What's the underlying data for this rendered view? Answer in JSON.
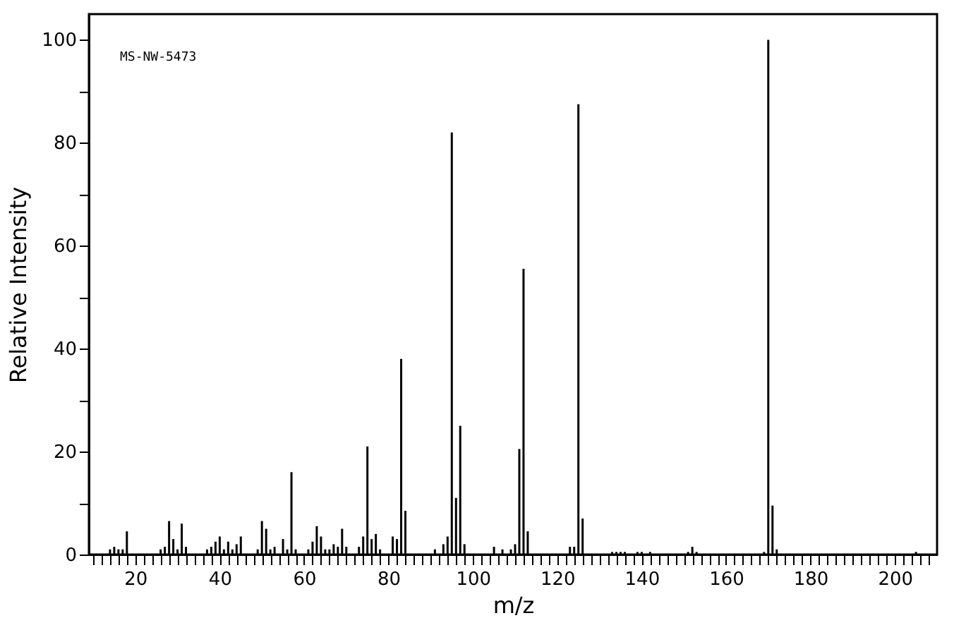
{
  "chart_data": {
    "type": "bar",
    "xlabel": "m/z",
    "ylabel": "Relative Intensity",
    "color": "#000000",
    "grid": false,
    "annotations": [
      "MS-NW-5473"
    ],
    "x": [
      14,
      15,
      16,
      17,
      18,
      26,
      27,
      28,
      29,
      30,
      31,
      32,
      37,
      38,
      39,
      40,
      41,
      42,
      43,
      44,
      45,
      49,
      50,
      51,
      52,
      53,
      55,
      56,
      57,
      58,
      61,
      62,
      63,
      64,
      65,
      66,
      67,
      68,
      69,
      70,
      73,
      74,
      75,
      76,
      77,
      78,
      81,
      82,
      83,
      84,
      91,
      93,
      94,
      95,
      96,
      97,
      98,
      105,
      107,
      109,
      110,
      111,
      112,
      113,
      123,
      124,
      125,
      126,
      133,
      134,
      135,
      136,
      139,
      140,
      142,
      151,
      152,
      153,
      169,
      170,
      171,
      172,
      205
    ],
    "values": [
      1,
      1.5,
      1,
      1,
      4.5,
      1,
      1.5,
      6.5,
      3,
      1,
      6,
      1.5,
      1,
      1.5,
      2.5,
      3.5,
      1,
      2.5,
      1,
      2,
      3.5,
      1,
      6.5,
      5,
      1,
      1.5,
      3,
      1,
      16,
      1,
      1,
      2.5,
      5.5,
      3.5,
      1,
      1,
      2,
      1.5,
      5,
      1.5,
      1.5,
      3.5,
      21,
      3,
      4,
      1,
      3.5,
      3,
      38,
      8.5,
      1,
      2,
      3.5,
      82,
      11,
      25,
      2,
      1.5,
      1,
      1,
      2,
      20.5,
      55.5,
      4.5,
      1.5,
      1.5,
      87.5,
      7,
      0.5,
      0.5,
      0.5,
      0.5,
      0.5,
      0.5,
      0.5,
      0.5,
      1.5,
      0.5,
      0.5,
      100,
      9.5,
      1,
      0.5
    ],
    "xlim": [
      9,
      210
    ],
    "ylim": [
      0,
      105
    ],
    "xticks": [
      {
        "value": 10,
        "label": null
      },
      {
        "value": 12,
        "label": null
      },
      {
        "value": 14,
        "label": null
      },
      {
        "value": 16,
        "label": null
      },
      {
        "value": 18,
        "label": null
      },
      20,
      {
        "value": 22,
        "label": null
      },
      {
        "value": 24,
        "label": null
      },
      {
        "value": 26,
        "label": null
      },
      {
        "value": 28,
        "label": null
      },
      {
        "value": 30,
        "label": null
      },
      {
        "value": 32,
        "label": null
      },
      {
        "value": 34,
        "label": null
      },
      {
        "value": 36,
        "label": null
      },
      {
        "value": 38,
        "label": null
      },
      40,
      {
        "value": 42,
        "label": null
      },
      {
        "value": 44,
        "label": null
      },
      {
        "value": 46,
        "label": null
      },
      {
        "value": 48,
        "label": null
      },
      {
        "value": 50,
        "label": null
      },
      {
        "value": 52,
        "label": null
      },
      {
        "value": 54,
        "label": null
      },
      {
        "value": 56,
        "label": null
      },
      {
        "value": 58,
        "label": null
      },
      60,
      {
        "value": 62,
        "label": null
      },
      {
        "value": 64,
        "label": null
      },
      {
        "value": 66,
        "label": null
      },
      {
        "value": 68,
        "label": null
      },
      {
        "value": 70,
        "label": null
      },
      {
        "value": 72,
        "label": null
      },
      {
        "value": 74,
        "label": null
      },
      {
        "value": 76,
        "label": null
      },
      {
        "value": 78,
        "label": null
      },
      80,
      {
        "value": 82,
        "label": null
      },
      {
        "value": 84,
        "label": null
      },
      {
        "value": 86,
        "label": null
      },
      {
        "value": 88,
        "label": null
      },
      {
        "value": 90,
        "label": null
      },
      {
        "value": 92,
        "label": null
      },
      {
        "value": 94,
        "label": null
      },
      {
        "value": 96,
        "label": null
      },
      {
        "value": 98,
        "label": null
      },
      100,
      {
        "value": 102,
        "label": null
      },
      {
        "value": 104,
        "label": null
      },
      {
        "value": 106,
        "label": null
      },
      {
        "value": 108,
        "label": null
      },
      {
        "value": 110,
        "label": null
      },
      {
        "value": 112,
        "label": null
      },
      {
        "value": 114,
        "label": null
      },
      {
        "value": 116,
        "label": null
      },
      {
        "value": 118,
        "label": null
      },
      120,
      {
        "value": 122,
        "label": null
      },
      {
        "value": 124,
        "label": null
      },
      {
        "value": 126,
        "label": null
      },
      {
        "value": 128,
        "label": null
      },
      {
        "value": 130,
        "label": null
      },
      {
        "value": 132,
        "label": null
      },
      {
        "value": 134,
        "label": null
      },
      {
        "value": 136,
        "label": null
      },
      {
        "value": 138,
        "label": null
      },
      140,
      {
        "value": 142,
        "label": null
      },
      {
        "value": 144,
        "label": null
      },
      {
        "value": 146,
        "label": null
      },
      {
        "value": 148,
        "label": null
      },
      {
        "value": 150,
        "label": null
      },
      {
        "value": 152,
        "label": null
      },
      {
        "value": 154,
        "label": null
      },
      {
        "value": 156,
        "label": null
      },
      {
        "value": 158,
        "label": null
      },
      160,
      {
        "value": 162,
        "label": null
      },
      {
        "value": 164,
        "label": null
      },
      {
        "value": 166,
        "label": null
      },
      {
        "value": 168,
        "label": null
      },
      {
        "value": 170,
        "label": null
      },
      {
        "value": 172,
        "label": null
      },
      {
        "value": 174,
        "label": null
      },
      {
        "value": 176,
        "label": null
      },
      {
        "value": 178,
        "label": null
      },
      180,
      {
        "value": 182,
        "label": null
      },
      {
        "value": 184,
        "label": null
      },
      {
        "value": 186,
        "label": null
      },
      {
        "value": 188,
        "label": null
      },
      {
        "value": 190,
        "label": null
      },
      {
        "value": 192,
        "label": null
      },
      {
        "value": 194,
        "label": null
      },
      {
        "value": 196,
        "label": null
      },
      {
        "value": 198,
        "label": null
      },
      200,
      {
        "value": 202,
        "label": null
      },
      {
        "value": 204,
        "label": null
      },
      {
        "value": 206,
        "label": null
      },
      {
        "value": 208,
        "label": null
      }
    ],
    "yticks": [
      0,
      {
        "value": 10,
        "label": null
      },
      20,
      {
        "value": 30,
        "label": null
      },
      40,
      {
        "value": 50,
        "label": null
      },
      60,
      {
        "value": 70,
        "label": null
      },
      80,
      {
        "value": 90,
        "label": null
      },
      100
    ]
  }
}
